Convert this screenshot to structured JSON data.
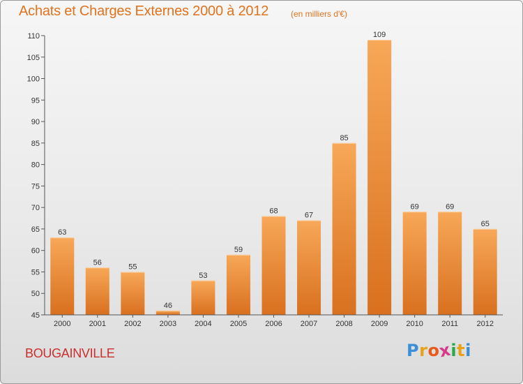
{
  "chart_data": {
    "type": "bar",
    "title": "Achats et Charges Externes 2000 à 2012",
    "subtitle": "(en milliers d'€)",
    "categories": [
      "2000",
      "2001",
      "2002",
      "2003",
      "2004",
      "2005",
      "2006",
      "2007",
      "2008",
      "2009",
      "2010",
      "2011",
      "2012"
    ],
    "values": [
      63,
      56,
      55,
      46,
      53,
      59,
      68,
      67,
      85,
      109,
      69,
      69,
      65
    ],
    "ylim": [
      45,
      110
    ],
    "yticks": [
      45,
      50,
      55,
      60,
      65,
      70,
      75,
      80,
      85,
      90,
      95,
      100,
      105,
      110
    ],
    "xlabel": "",
    "ylabel": "",
    "grid": false,
    "bar_color_top": "#f7a858",
    "bar_color_bottom": "#d8701f"
  },
  "commune": "BOUGAINVILLE",
  "logo": {
    "text": "Proxiti",
    "letters": [
      "P",
      "r",
      "o",
      "x",
      "i",
      "t",
      "i"
    ],
    "colors": [
      "#3a8fd8",
      "#e8a21a",
      "#e85a1a",
      "#d83a8a",
      "#2aa84a",
      "#e8a21a",
      "#3a8fd8"
    ]
  }
}
